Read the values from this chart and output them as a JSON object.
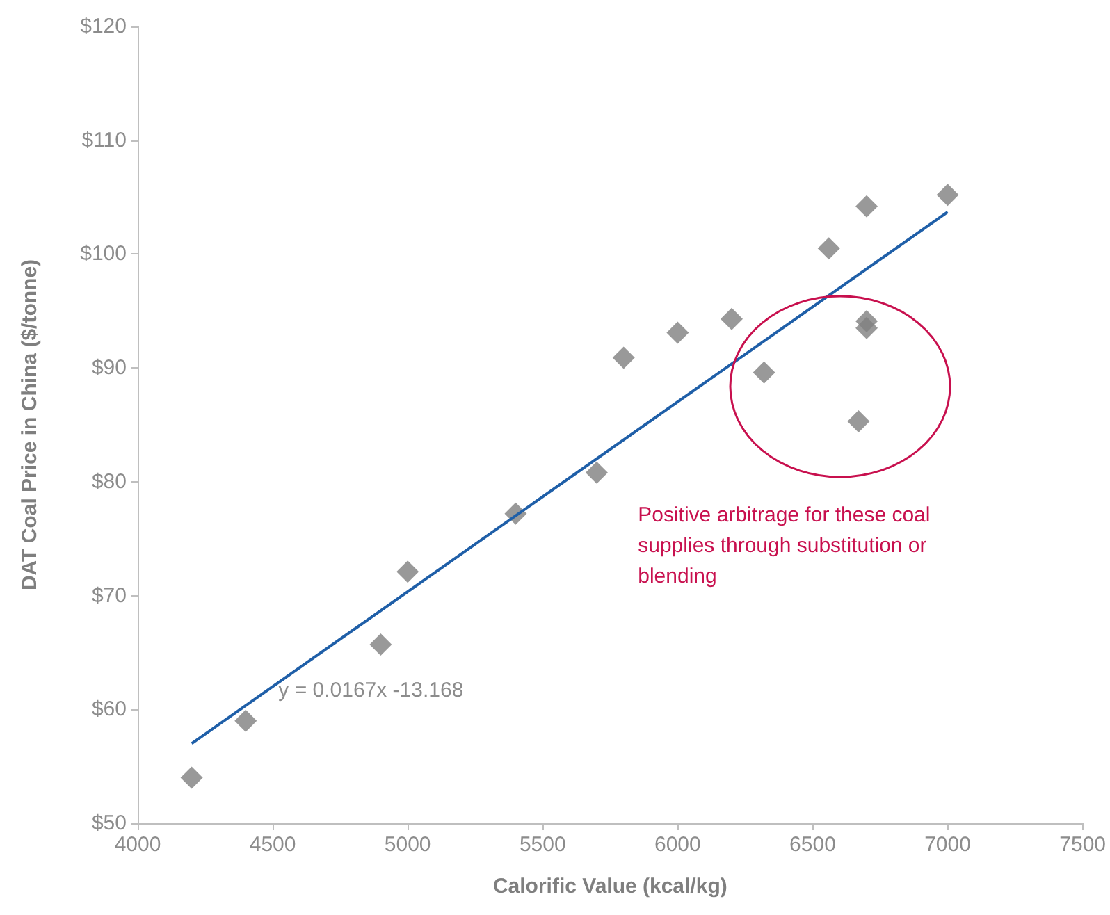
{
  "chart_data": {
    "type": "scatter",
    "xlabel": "Calorific Value (kcal/kg)",
    "ylabel": "DAT Coal Price in China ($/tonne)",
    "x": [
      4200,
      4400,
      4900,
      5000,
      5400,
      5700,
      5800,
      6000,
      6200,
      6320,
      6560,
      6670,
      6700,
      6700,
      6700,
      7000
    ],
    "series": [
      {
        "color": "#7f7f7f",
        "values": [
          54,
          59,
          65.7,
          72.1,
          77.2,
          80.8,
          90.9,
          93.1,
          94.3,
          89.6,
          100.5,
          85.3,
          104.2,
          94.1,
          93.5,
          105.2
        ]
      },
      {
        "type": "line",
        "color": "#1f5fa8",
        "x": [
          4200,
          7000
        ],
        "values": [
          57,
          103.7
        ],
        "marker": "none"
      }
    ],
    "marker": "diamond",
    "grid": false,
    "xlim": [
      4000,
      7500
    ],
    "xticks": [
      4000,
      4500,
      5000,
      5500,
      6000,
      6500,
      7000,
      7500
    ],
    "ylim": [
      50,
      120
    ],
    "yticks": [
      {
        "value": 50,
        "label": "$50"
      },
      {
        "value": 60,
        "label": "$60"
      },
      {
        "value": 70,
        "label": "$70"
      },
      {
        "value": 80,
        "label": "$80"
      },
      {
        "value": 90,
        "label": "$90"
      },
      {
        "value": 100,
        "label": "$100"
      },
      {
        "value": 110,
        "label": "$110"
      },
      {
        "value": 120,
        "label": "$120"
      }
    ],
    "annotations": [
      "y = 0.0167x -13.168",
      "Positive arbitrage for these coal supplies through substitution or blending"
    ]
  }
}
